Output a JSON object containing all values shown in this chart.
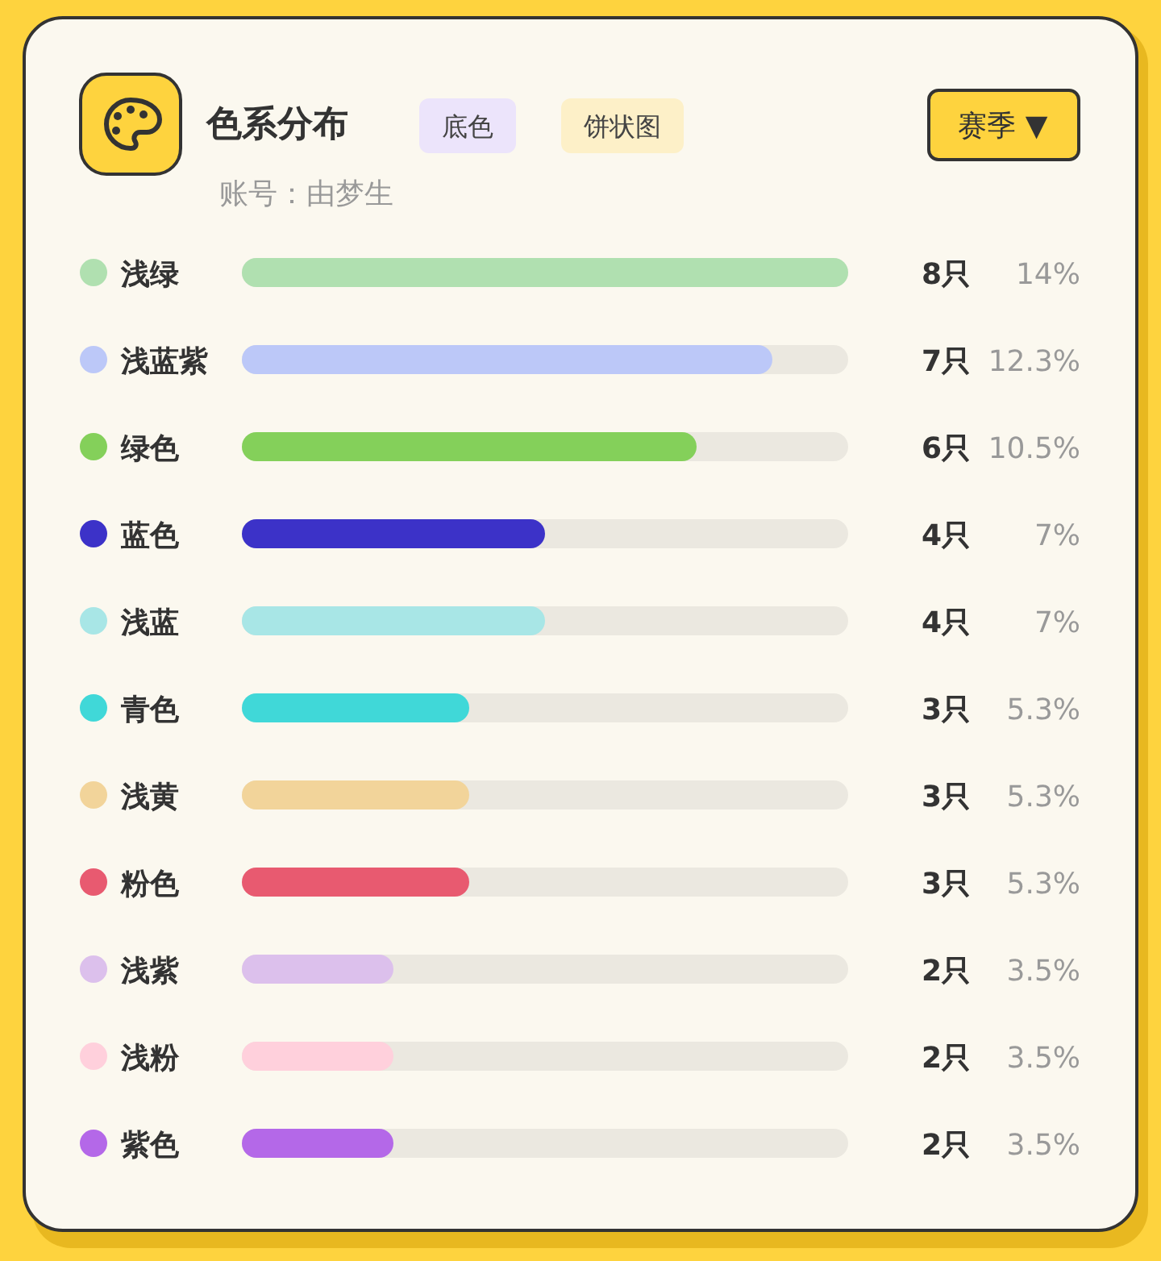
{
  "chart_data": {
    "type": "bar",
    "orientation": "horizontal",
    "title": "色系分布",
    "subtitle": "账号：由梦生",
    "categories": [
      "浅绿",
      "浅蓝紫",
      "绿色",
      "蓝色",
      "浅蓝",
      "青色",
      "浅黄",
      "粉色",
      "浅紫",
      "浅粉",
      "紫色"
    ],
    "values": [
      8,
      7,
      6,
      4,
      4,
      3,
      3,
      3,
      2,
      2,
      2
    ],
    "colors": [
      "#b0e0b0",
      "#bcc8f8",
      "#84d05a",
      "#3c32c8",
      "#a8e6e6",
      "#40d8d8",
      "#f2d49a",
      "#e85a70",
      "#dcc0ec",
      "#ffd0dc",
      "#b468e8"
    ],
    "value_labels": [
      "8只",
      "7只",
      "6只",
      "4只",
      "4只",
      "3只",
      "3只",
      "3只",
      "2只",
      "2只",
      "2只"
    ],
    "annotations": [
      "底色",
      "饼状图",
      "赛季 ▼",
      "14%",
      "12.3%",
      "10.5%",
      "7%",
      "7%",
      "5.3%",
      "5.3%",
      "5.3%",
      "3.5%",
      "3.5%",
      "3.5%"
    ]
  }
}
